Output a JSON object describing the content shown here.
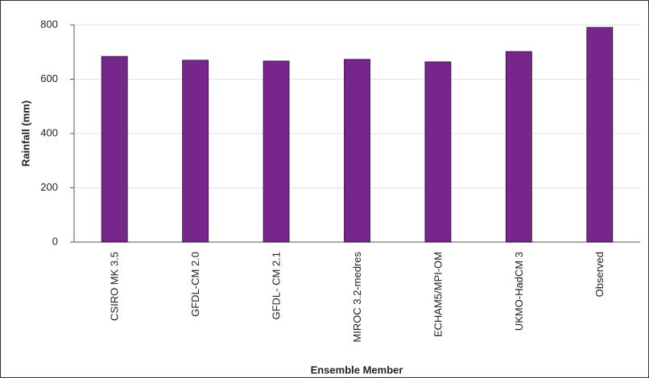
{
  "chart_data": {
    "type": "bar",
    "categories": [
      "CSIRO MK 3.5",
      "GFDL-CM 2.0",
      "GFDL- CM 2.1",
      "MIROC 3.2-medres",
      "ECHAM5/MPI-OM",
      "UKMO-HadCM 3",
      "Observed"
    ],
    "values": [
      684,
      670,
      667,
      673,
      664,
      702,
      791
    ],
    "color": "#77278b",
    "xlabel": "Ensemble Member",
    "ylabel": "Rainfall (mm)",
    "ylim": [
      0,
      800
    ],
    "yticks": [
      0,
      200,
      400,
      600,
      800
    ],
    "grid": true
  }
}
